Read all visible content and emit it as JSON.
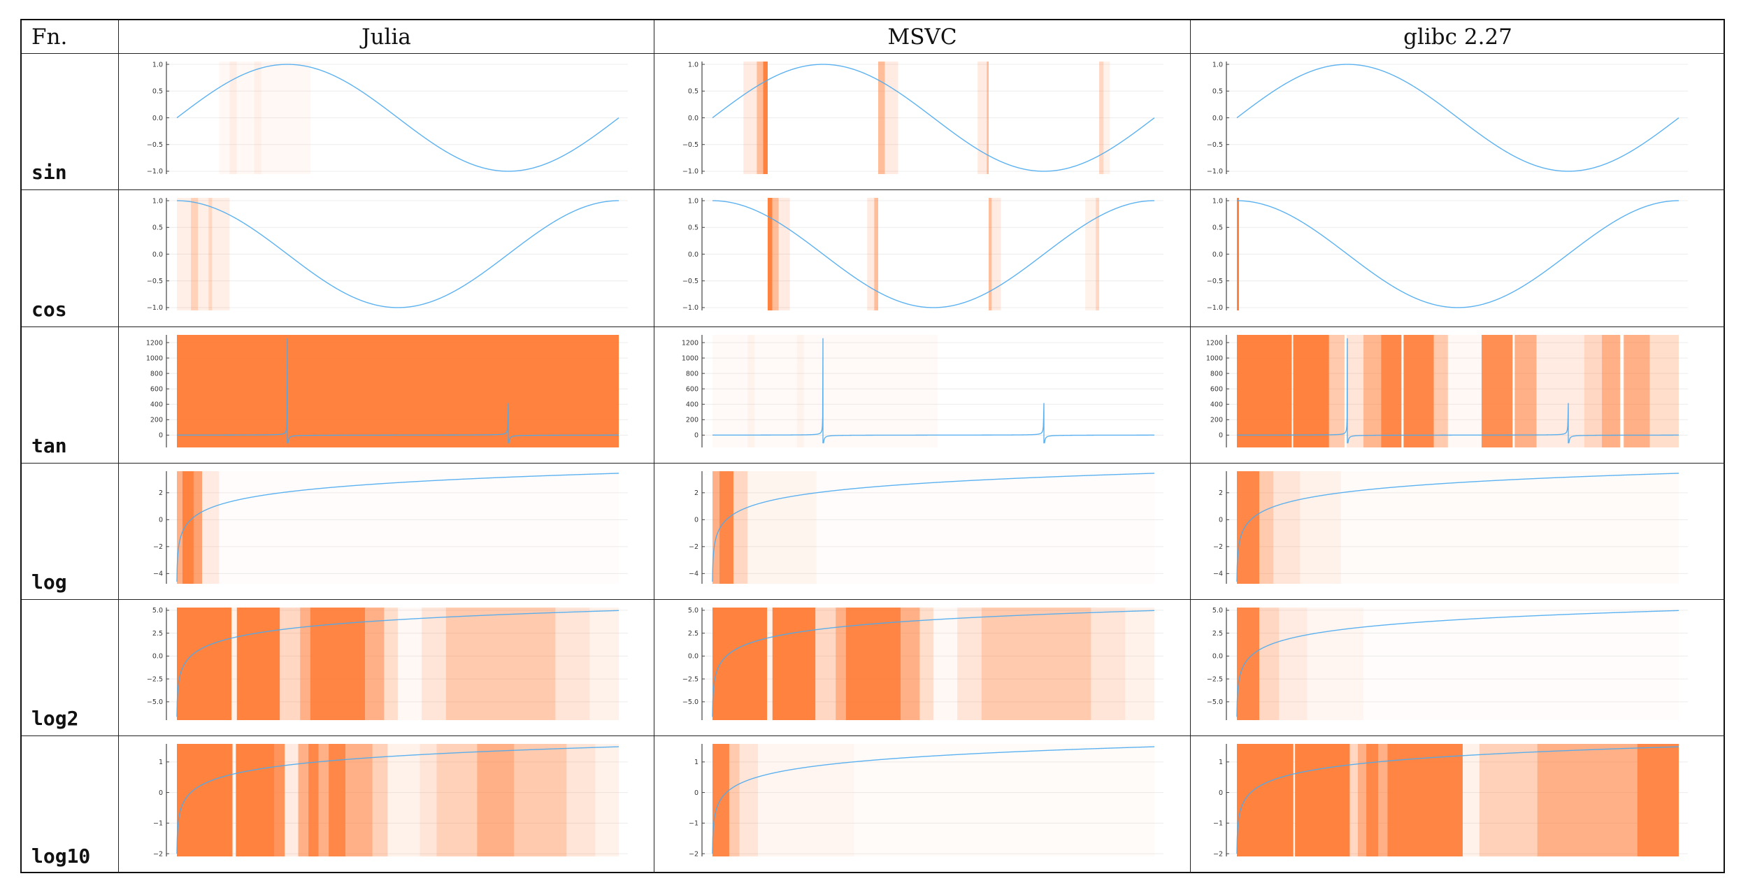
{
  "table": {
    "header": [
      "Fn.",
      "Julia",
      "MSVC",
      "glibc 2.27"
    ],
    "rows": [
      "sin",
      "cos",
      "tan",
      "log",
      "log2",
      "log10"
    ]
  },
  "colors": {
    "curve": "#4aaaf0",
    "error_band": "#ff7b35",
    "grid": "#ececec",
    "axis": "#444444"
  },
  "chart_data": [
    {
      "type": "line",
      "function": "sin",
      "library": "Julia",
      "xlim": [
        0,
        6.283
      ],
      "ylim": [
        -1.053,
        1.053
      ],
      "yticks": [
        -1,
        -0.5,
        0,
        0.5,
        1
      ],
      "ytick_labels": [
        "−1.0",
        "−0.5",
        "0.0",
        "0.5",
        "1.0"
      ],
      "grid": true,
      "error_bands": [
        [
          0.6,
          1.9,
          0.05
        ],
        [
          0.75,
          0.85,
          0.08
        ],
        [
          1.1,
          1.2,
          0.06
        ]
      ]
    },
    {
      "type": "line",
      "function": "sin",
      "library": "MSVC",
      "xlim": [
        0,
        6.283
      ],
      "ylim": [
        -1.053,
        1.053
      ],
      "yticks": [
        -1,
        -0.5,
        0,
        0.5,
        1
      ],
      "ytick_labels": [
        "−1.0",
        "−0.5",
        "0.0",
        "0.5",
        "1.0"
      ],
      "grid": true,
      "error_bands": [
        [
          0.44,
          0.63,
          0.15
        ],
        [
          0.63,
          0.72,
          0.5
        ],
        [
          0.72,
          0.785,
          0.95
        ],
        [
          2.356,
          2.45,
          0.5
        ],
        [
          2.45,
          2.64,
          0.15
        ],
        [
          3.77,
          3.9,
          0.15
        ],
        [
          3.9,
          3.927,
          0.5
        ],
        [
          5.498,
          5.56,
          0.3
        ],
        [
          5.56,
          5.65,
          0.1
        ]
      ]
    },
    {
      "type": "line",
      "function": "sin",
      "library": "glibc 2.27",
      "xlim": [
        0,
        6.283
      ],
      "ylim": [
        -1.053,
        1.053
      ],
      "yticks": [
        -1,
        -0.5,
        0,
        0.5,
        1
      ],
      "ytick_labels": [
        "−1.0",
        "−0.5",
        "0.0",
        "0.5",
        "1.0"
      ],
      "grid": true,
      "error_bands": []
    },
    {
      "type": "line",
      "function": "cos",
      "library": "Julia",
      "xlim": [
        0,
        6.283
      ],
      "ylim": [
        -1.053,
        1.053
      ],
      "yticks": [
        -1,
        -0.5,
        0,
        0.5,
        1
      ],
      "ytick_labels": [
        "−1.0",
        "−0.5",
        "0.0",
        "0.5",
        "1.0"
      ],
      "grid": true,
      "error_bands": [
        [
          0,
          0.75,
          0.12
        ],
        [
          0.2,
          0.3,
          0.25
        ],
        [
          0.45,
          0.5,
          0.2
        ]
      ]
    },
    {
      "type": "line",
      "function": "cos",
      "library": "MSVC",
      "xlim": [
        0,
        6.283
      ],
      "ylim": [
        -1.053,
        1.053
      ],
      "yticks": [
        -1,
        -0.5,
        0,
        0.5,
        1
      ],
      "ytick_labels": [
        "−1.0",
        "−0.5",
        "0.0",
        "0.5",
        "1.0"
      ],
      "grid": true,
      "error_bands": [
        [
          0.785,
          0.85,
          0.95
        ],
        [
          0.85,
          0.94,
          0.5
        ],
        [
          0.94,
          1.1,
          0.15
        ],
        [
          2.2,
          2.3,
          0.15
        ],
        [
          2.3,
          2.356,
          0.5
        ],
        [
          3.927,
          3.97,
          0.5
        ],
        [
          3.97,
          4.1,
          0.15
        ],
        [
          5.3,
          5.45,
          0.1
        ],
        [
          5.45,
          5.498,
          0.3
        ]
      ]
    },
    {
      "type": "line",
      "function": "cos",
      "library": "glibc 2.27",
      "xlim": [
        0,
        6.283
      ],
      "ylim": [
        -1.053,
        1.053
      ],
      "yticks": [
        -1,
        -0.5,
        0,
        0.5,
        1
      ],
      "ytick_labels": [
        "−1.0",
        "−0.5",
        "0.0",
        "0.5",
        "1.0"
      ],
      "grid": true,
      "error_bands": [
        [
          0,
          0.03,
          0.95
        ]
      ]
    },
    {
      "type": "line",
      "function": "tan",
      "library": "Julia",
      "xlim": [
        0,
        6.283
      ],
      "ylim": [
        -160,
        1300
      ],
      "yticks": [
        0,
        200,
        400,
        600,
        800,
        1000,
        1200
      ],
      "ytick_labels": [
        "0",
        "200",
        "400",
        "600",
        "800",
        "1000",
        "1200"
      ],
      "grid": true,
      "spikes": [
        {
          "x": 1.5708,
          "peak": 1250,
          "trough": -100
        },
        {
          "x": 4.7124,
          "peak": 410,
          "trough": -100
        }
      ],
      "error_bands": [
        [
          0,
          6.283,
          0.95
        ]
      ]
    },
    {
      "type": "line",
      "function": "tan",
      "library": "MSVC",
      "xlim": [
        0,
        6.283
      ],
      "ylim": [
        -160,
        1300
      ],
      "yticks": [
        0,
        200,
        400,
        600,
        800,
        1000,
        1200
      ],
      "ytick_labels": [
        "0",
        "200",
        "400",
        "600",
        "800",
        "1000",
        "1200"
      ],
      "grid": true,
      "spikes": [
        {
          "x": 1.5708,
          "peak": 1250,
          "trough": -100
        },
        {
          "x": 4.7124,
          "peak": 410,
          "trough": -100
        }
      ],
      "error_bands": [
        [
          0,
          3.2,
          0.04
        ],
        [
          0.5,
          0.6,
          0.05
        ],
        [
          1.2,
          1.3,
          0.05
        ]
      ]
    },
    {
      "type": "line",
      "function": "tan",
      "library": "glibc 2.27",
      "xlim": [
        0,
        6.283
      ],
      "ylim": [
        -160,
        1300
      ],
      "yticks": [
        0,
        200,
        400,
        600,
        800,
        1000,
        1200
      ],
      "ytick_labels": [
        "0",
        "200",
        "400",
        "600",
        "800",
        "1000",
        "1200"
      ],
      "grid": true,
      "spikes": [
        {
          "x": 1.5708,
          "peak": 1250,
          "trough": -100
        },
        {
          "x": 4.7124,
          "peak": 410,
          "trough": -100
        }
      ],
      "error_bands": [
        [
          0,
          0.78,
          0.95
        ],
        [
          0.8,
          1.31,
          0.95
        ],
        [
          1.31,
          1.53,
          0.4
        ],
        [
          1.56,
          1.8,
          0.2
        ],
        [
          1.8,
          2.05,
          0.55
        ],
        [
          2.05,
          2.34,
          0.9
        ],
        [
          2.37,
          2.8,
          0.9
        ],
        [
          2.8,
          3.0,
          0.4
        ],
        [
          3.0,
          3.48,
          0.05
        ],
        [
          3.48,
          3.92,
          0.85
        ],
        [
          3.95,
          4.26,
          0.6
        ],
        [
          4.26,
          4.94,
          0.15
        ],
        [
          4.94,
          5.19,
          0.3
        ],
        [
          5.19,
          5.45,
          0.6
        ],
        [
          5.5,
          5.87,
          0.6
        ],
        [
          5.87,
          6.283,
          0.25
        ]
      ]
    },
    {
      "type": "line",
      "function": "log",
      "library": "Julia",
      "xlim": [
        0.01,
        31.4
      ],
      "ylim": [
        -4.76,
        3.6
      ],
      "yticks": [
        -4,
        -2,
        0,
        2
      ],
      "ytick_labels": [
        "−4",
        "−2",
        "0",
        "2"
      ],
      "grid": true,
      "error_bands": [
        [
          0,
          0.4,
          0.6
        ],
        [
          0.4,
          1.2,
          0.95
        ],
        [
          1.2,
          1.8,
          0.7
        ],
        [
          1.8,
          3,
          0.15
        ],
        [
          3,
          31.4,
          0.02
        ]
      ]
    },
    {
      "type": "line",
      "function": "log",
      "library": "MSVC",
      "xlim": [
        0.01,
        31.4
      ],
      "ylim": [
        -4.76,
        3.6
      ],
      "yticks": [
        -4,
        -2,
        0,
        2
      ],
      "ytick_labels": [
        "−4",
        "−2",
        "0",
        "2"
      ],
      "grid": true,
      "error_bands": [
        [
          0,
          0.5,
          0.6
        ],
        [
          0.5,
          1.5,
          0.9
        ],
        [
          1.5,
          2.5,
          0.3
        ],
        [
          2.5,
          7.4,
          0.08
        ],
        [
          7.4,
          31.4,
          0.02
        ]
      ]
    },
    {
      "type": "line",
      "function": "log",
      "library": "glibc 2.27",
      "xlim": [
        0.01,
        31.4
      ],
      "ylim": [
        -4.76,
        3.6
      ],
      "yticks": [
        -4,
        -2,
        0,
        2
      ],
      "ytick_labels": [
        "−4",
        "−2",
        "0",
        "2"
      ],
      "grid": true,
      "error_bands": [
        [
          0,
          1.6,
          0.9
        ],
        [
          1.6,
          2.6,
          0.4
        ],
        [
          2.6,
          4.5,
          0.2
        ],
        [
          4.5,
          7.4,
          0.1
        ],
        [
          7.4,
          31.4,
          0.03
        ]
      ]
    },
    {
      "type": "line",
      "function": "log2",
      "library": "Julia",
      "xlim": [
        0.01,
        31.4
      ],
      "ylim": [
        -7,
        5.3
      ],
      "yticks": [
        -5,
        -2.5,
        0,
        2.5,
        5
      ],
      "ytick_labels": [
        "−5.0",
        "−2.5",
        "0.0",
        "2.5",
        "5.0"
      ],
      "grid": true,
      "error_bands": [
        [
          0,
          3.89,
          0.95
        ],
        [
          3.89,
          4.27,
          0.1
        ],
        [
          4.27,
          7.32,
          0.95
        ],
        [
          7.32,
          8.76,
          0.3
        ],
        [
          8.76,
          9.48,
          0.6
        ],
        [
          9.48,
          13.38,
          0.92
        ],
        [
          13.38,
          14.73,
          0.6
        ],
        [
          14.73,
          15.7,
          0.25
        ],
        [
          15.7,
          17.4,
          0.05
        ],
        [
          17.4,
          19.12,
          0.2
        ],
        [
          19.12,
          26.9,
          0.4
        ],
        [
          26.9,
          29.33,
          0.2
        ],
        [
          29.33,
          31.4,
          0.1
        ]
      ]
    },
    {
      "type": "line",
      "function": "log2",
      "library": "MSVC",
      "xlim": [
        0.01,
        31.4
      ],
      "ylim": [
        -7,
        5.3
      ],
      "yticks": [
        -5,
        -2.5,
        0,
        2.5,
        5
      ],
      "ytick_labels": [
        "−5.0",
        "−2.5",
        "0.0",
        "2.5",
        "5.0"
      ],
      "grid": true,
      "error_bands": [
        [
          0,
          3.89,
          0.95
        ],
        [
          3.89,
          4.27,
          0.1
        ],
        [
          4.27,
          7.32,
          0.95
        ],
        [
          7.32,
          8.76,
          0.3
        ],
        [
          8.76,
          9.48,
          0.6
        ],
        [
          9.48,
          13.38,
          0.92
        ],
        [
          13.38,
          14.73,
          0.6
        ],
        [
          14.73,
          15.7,
          0.25
        ],
        [
          15.7,
          17.4,
          0.05
        ],
        [
          17.4,
          19.12,
          0.2
        ],
        [
          19.12,
          26.9,
          0.4
        ],
        [
          26.9,
          29.33,
          0.2
        ],
        [
          29.33,
          31.4,
          0.1
        ]
      ]
    },
    {
      "type": "line",
      "function": "log2",
      "library": "glibc 2.27",
      "xlim": [
        0.01,
        31.4
      ],
      "ylim": [
        -7,
        5.3
      ],
      "yticks": [
        -5,
        -2.5,
        0,
        2.5,
        5
      ],
      "ytick_labels": [
        "−5.0",
        "−2.5",
        "0.0",
        "2.5",
        "5.0"
      ],
      "grid": true,
      "error_bands": [
        [
          0,
          1.6,
          0.9
        ],
        [
          1.6,
          3,
          0.3
        ],
        [
          3,
          5,
          0.15
        ],
        [
          5,
          9,
          0.07
        ],
        [
          9,
          31.4,
          0.02
        ]
      ]
    },
    {
      "type": "line",
      "function": "log10",
      "library": "Julia",
      "xlim": [
        0.01,
        31.4
      ],
      "ylim": [
        -2.09,
        1.59
      ],
      "yticks": [
        -2,
        -1,
        0,
        1
      ],
      "ytick_labels": [
        "−2",
        "−1",
        "0",
        "1"
      ],
      "grid": true,
      "error_bands": [
        [
          0,
          3.96,
          0.95
        ],
        [
          3.96,
          4.2,
          0.05
        ],
        [
          4.2,
          6.95,
          0.95
        ],
        [
          6.95,
          7.67,
          0.8
        ],
        [
          7.67,
          8.63,
          0.15
        ],
        [
          8.63,
          9.35,
          0.6
        ],
        [
          9.35,
          10.07,
          0.9
        ],
        [
          10.07,
          10.79,
          0.6
        ],
        [
          10.79,
          11.99,
          0.9
        ],
        [
          11.99,
          13.9,
          0.6
        ],
        [
          13.9,
          14.98,
          0.35
        ],
        [
          14.98,
          17.27,
          0.1
        ],
        [
          17.27,
          18.46,
          0.2
        ],
        [
          18.46,
          21.33,
          0.35
        ],
        [
          21.33,
          23.96,
          0.6
        ],
        [
          23.96,
          27.69,
          0.4
        ],
        [
          27.69,
          29.73,
          0.2
        ],
        [
          29.73,
          31.4,
          0.1
        ]
      ]
    },
    {
      "type": "line",
      "function": "log10",
      "library": "MSVC",
      "xlim": [
        0.01,
        31.4
      ],
      "ylim": [
        -2.09,
        1.59
      ],
      "yticks": [
        -2,
        -1,
        0,
        1
      ],
      "ytick_labels": [
        "−2",
        "−1",
        "0",
        "1"
      ],
      "grid": true,
      "error_bands": [
        [
          0,
          1.2,
          0.9
        ],
        [
          1.2,
          1.92,
          0.4
        ],
        [
          1.92,
          3.24,
          0.2
        ],
        [
          3.24,
          10.07,
          0.07
        ],
        [
          10.07,
          31.4,
          0.03
        ]
      ]
    },
    {
      "type": "line",
      "function": "log10",
      "library": "glibc 2.27",
      "xlim": [
        0.01,
        31.4
      ],
      "ylim": [
        -2.09,
        1.59
      ],
      "yticks": [
        -2,
        -1,
        0,
        1
      ],
      "ytick_labels": [
        "−2",
        "−1",
        "0",
        "1"
      ],
      "grid": true,
      "error_bands": [
        [
          0,
          4.02,
          0.95
        ],
        [
          4.02,
          4.14,
          0.1
        ],
        [
          4.14,
          8.03,
          0.95
        ],
        [
          8.03,
          8.6,
          0.3
        ],
        [
          8.6,
          9.2,
          0.6
        ],
        [
          9.2,
          10.05,
          0.9
        ],
        [
          10.05,
          10.7,
          0.6
        ],
        [
          10.7,
          16.05,
          0.92
        ],
        [
          16.05,
          17.24,
          0.1
        ],
        [
          17.24,
          21.35,
          0.35
        ],
        [
          21.35,
          28.45,
          0.6
        ],
        [
          28.45,
          31.4,
          0.9
        ]
      ]
    }
  ]
}
